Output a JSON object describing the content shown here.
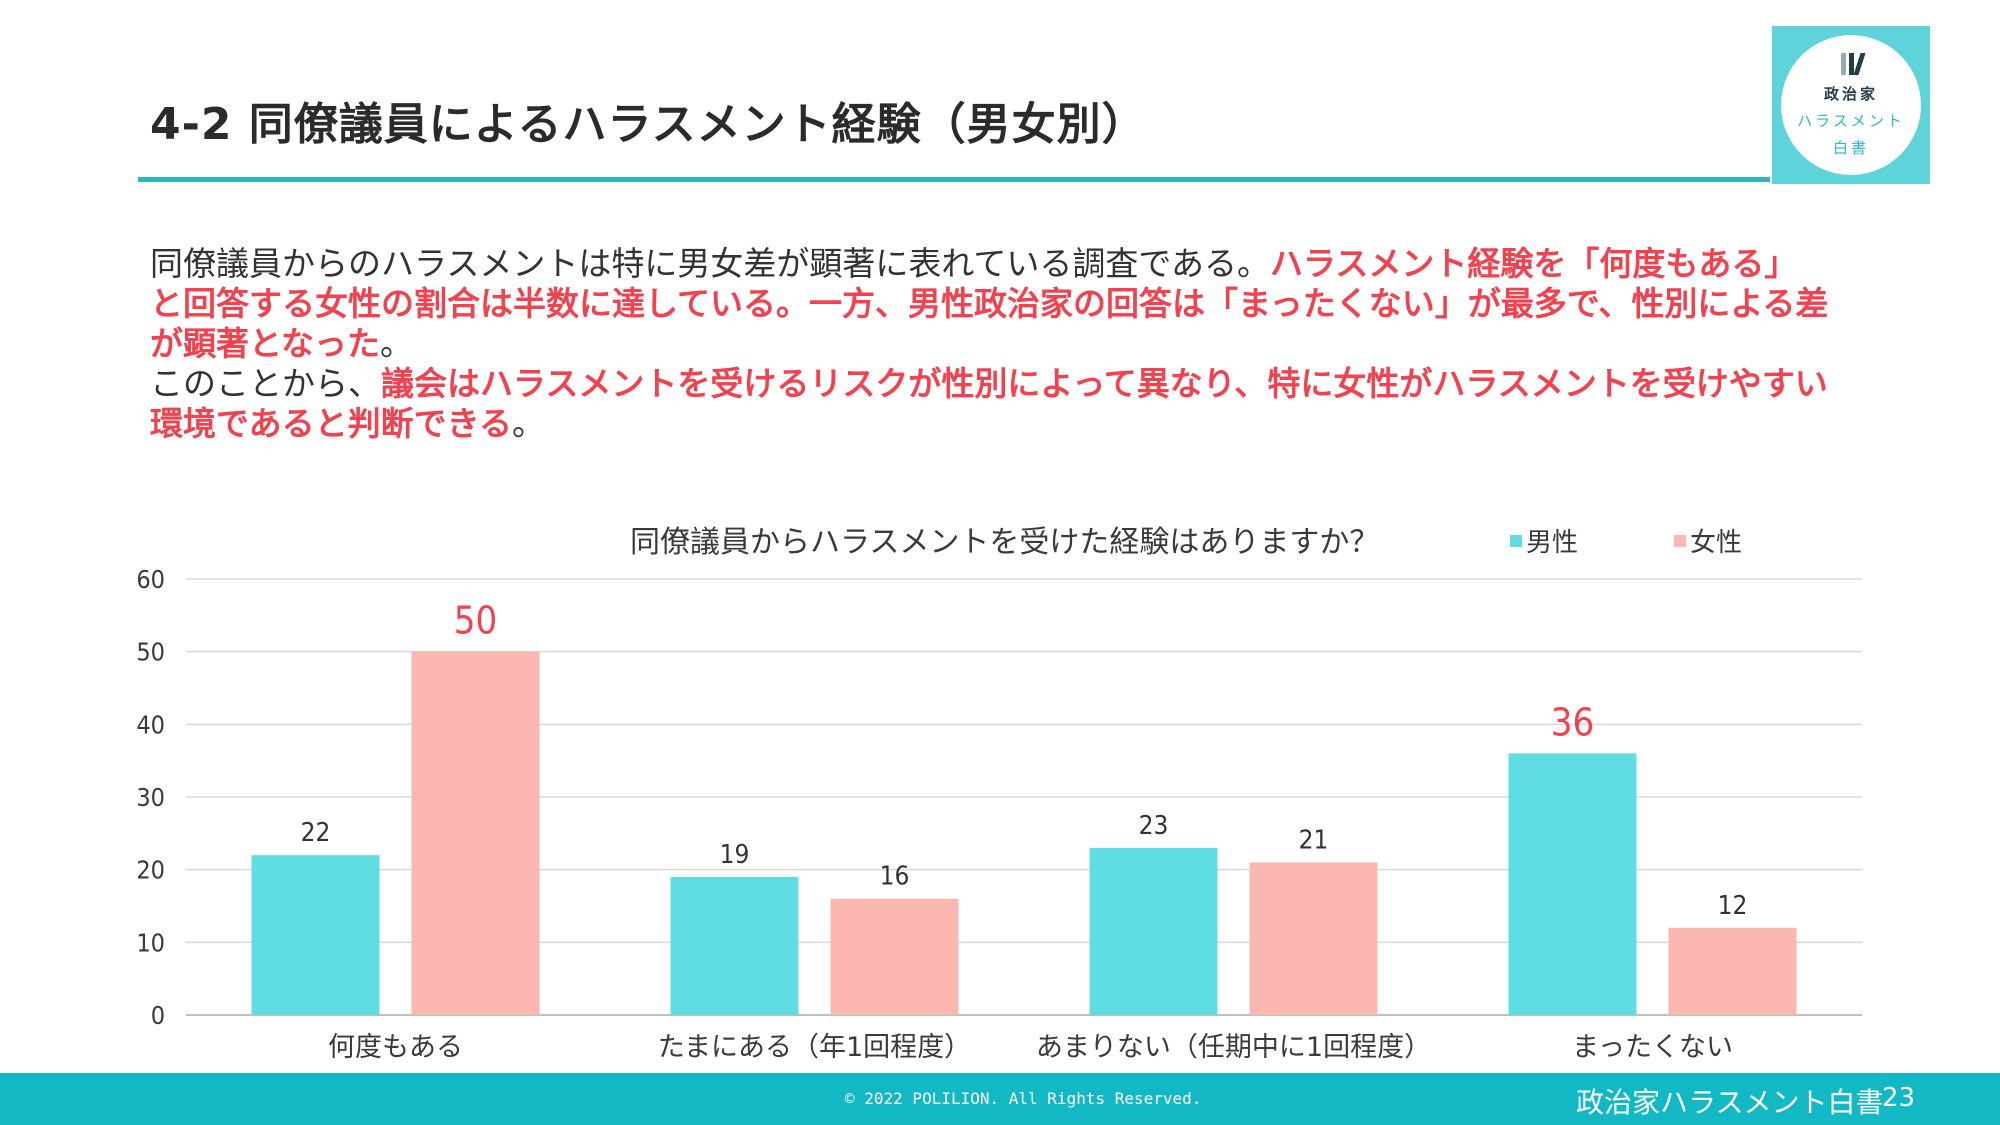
{
  "header": {
    "title": "4-2 同僚議員によるハラスメント経験（男女別）"
  },
  "logo": {
    "line1": "政治家",
    "line2": "ハラスメント",
    "line3": "白書"
  },
  "body": {
    "p1_plain": "同僚議員からのハラスメントは特に男女差が顕著に表れている調査である。",
    "p1_highlight": "ハラスメント経験を「何度もある」と回答する女性の割合は半数に達している。一方、男性政治家の回答は「まったくない」が最多で、性別による差が顕著となった",
    "p1_end": "。",
    "p2_plain": "このことから、",
    "p2_highlight": "議会はハラスメントを受けるリスクが性別によって異なり、特に女性がハラスメントを受けやすい環境であると判断できる",
    "p2_end": "。"
  },
  "chart_data": {
    "type": "bar",
    "title": "同僚議員からハラスメントを受けた経験はありますか？",
    "categories": [
      "何度もある",
      "たまにある（年1回程度）",
      "あまりない（任期中に1回程度）",
      "まったくない"
    ],
    "series": [
      {
        "name": "男性",
        "color": "#5fdde3",
        "values": [
          22,
          19,
          23,
          36
        ]
      },
      {
        "name": "女性",
        "color": "#fbb7b0",
        "values": [
          50,
          16,
          21,
          12
        ]
      }
    ],
    "y_ticks": [
      0,
      10,
      20,
      30,
      40,
      50,
      60
    ],
    "ylim": [
      0,
      60
    ],
    "grid": true,
    "legend_position": "top-right",
    "highlight_color": "#f0424f",
    "normal_label_color": "#333333",
    "highlighted_values": [
      {
        "series": 1,
        "category": 0
      },
      {
        "series": 0,
        "category": 3
      }
    ]
  },
  "footer": {
    "copyright": "© 2022 POLILION. All Rights Reserved.",
    "title": "政治家ハラスメント白書",
    "page": "23"
  }
}
